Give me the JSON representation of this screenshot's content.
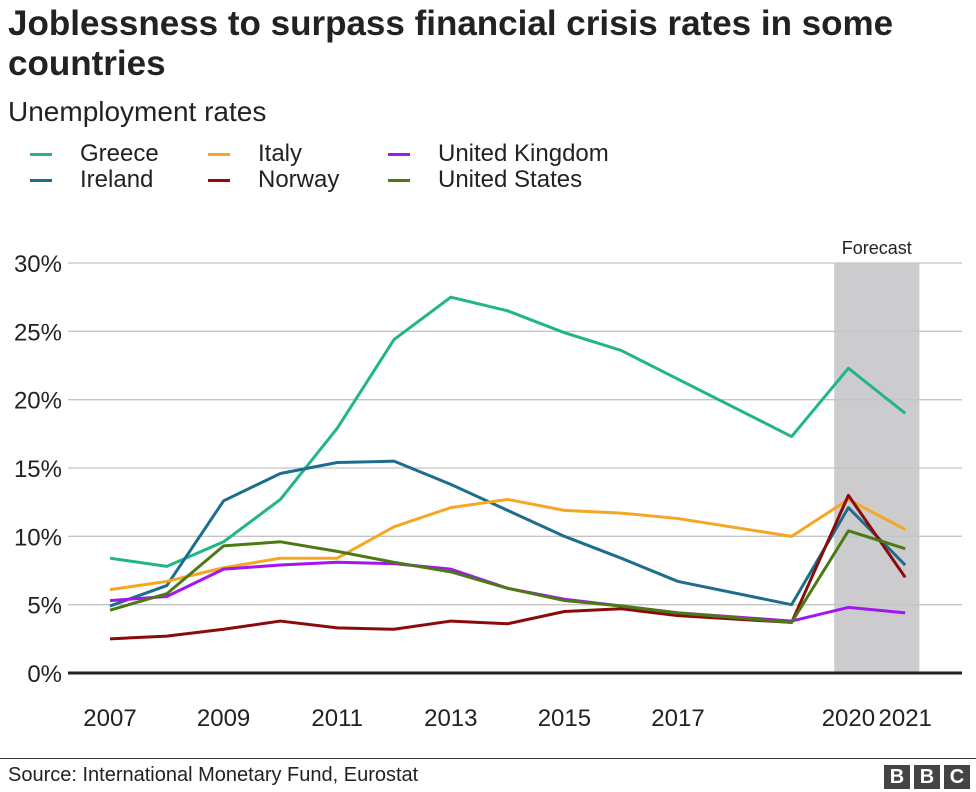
{
  "chart_data": {
    "type": "line",
    "title": "Joblessness to surpass financial crisis rates in some countries",
    "subtitle": "Unemployment rates",
    "x_tick_labels": [
      "2007",
      "2009",
      "2011",
      "2013",
      "2015",
      "2017",
      "2020",
      "2021"
    ],
    "y_tick_labels": [
      "0%",
      "5%",
      "10%",
      "15%",
      "20%",
      "25%",
      "30%"
    ],
    "ylim": [
      0,
      30
    ],
    "xlim": [
      2007,
      2021
    ],
    "grid": "horizontal",
    "legend_placement": "top-left",
    "annotation": {
      "label": "Forecast",
      "from": 2019.75,
      "to": 2021.25,
      "color": "#cccccf"
    },
    "x": [
      2007,
      2008,
      2009,
      2010,
      2011,
      2012,
      2013,
      2014,
      2015,
      2016,
      2017,
      2019,
      2020,
      2021
    ],
    "series": [
      {
        "name": "Greece",
        "color": "#22b58a",
        "values": [
          8.4,
          7.8,
          9.6,
          12.7,
          17.9,
          24.4,
          27.5,
          26.5,
          24.9,
          23.6,
          21.5,
          17.3,
          22.3,
          19.0
        ]
      },
      {
        "name": "Ireland",
        "color": "#1d6e8c",
        "values": [
          4.9,
          6.4,
          12.6,
          14.6,
          15.4,
          15.5,
          13.8,
          11.9,
          10.0,
          8.4,
          6.7,
          5.0,
          12.1,
          7.9
        ]
      },
      {
        "name": "Italy",
        "color": "#f5a623",
        "values": [
          6.1,
          6.7,
          7.7,
          8.4,
          8.4,
          10.7,
          12.1,
          12.7,
          11.9,
          11.7,
          11.3,
          10.0,
          12.7,
          10.5
        ]
      },
      {
        "name": "Norway",
        "color": "#8b0a0a",
        "values": [
          2.5,
          2.7,
          3.2,
          3.8,
          3.3,
          3.2,
          3.8,
          3.6,
          4.5,
          4.7,
          4.2,
          3.7,
          13.0,
          7.0
        ]
      },
      {
        "name": "United Kingdom",
        "color": "#a316ef",
        "values": [
          5.3,
          5.6,
          7.6,
          7.9,
          8.1,
          8.0,
          7.6,
          6.2,
          5.4,
          4.9,
          4.4,
          3.8,
          4.8,
          4.4
        ]
      },
      {
        "name": "United States",
        "color": "#4c7a12",
        "values": [
          4.6,
          5.8,
          9.3,
          9.6,
          8.9,
          8.1,
          7.4,
          6.2,
          5.3,
          4.9,
          4.4,
          3.7,
          10.4,
          9.1
        ]
      }
    ]
  },
  "source": "Source: International Monetary Fund, Eurostat",
  "logo": "BBC"
}
